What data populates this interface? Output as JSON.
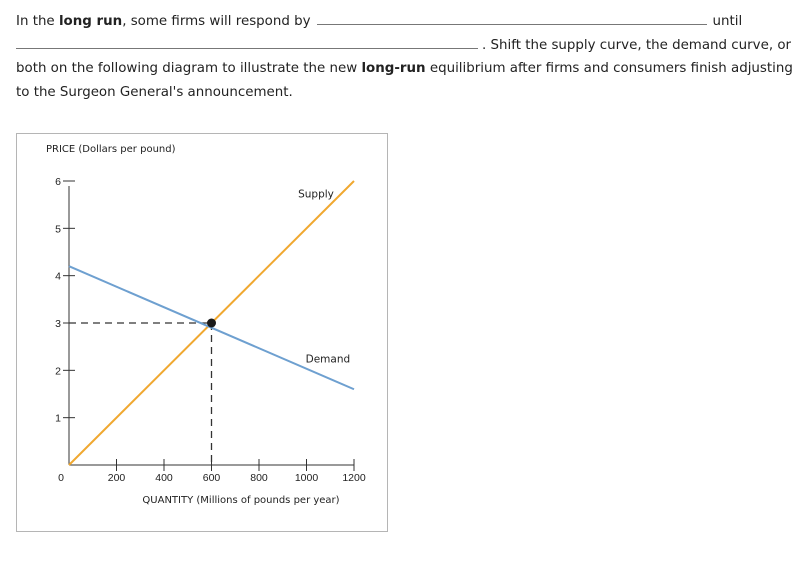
{
  "question": {
    "part1": "In the ",
    "bold1": "long run",
    "part2": ", some firms will respond by",
    "until": "until",
    "part3": ". Shift the supply curve, the demand curve, or both on the following diagram to illustrate the new ",
    "bold2": "long-run",
    "part4": " equilibrium after firms and consumers finish adjusting to the Surgeon General's announcement."
  },
  "chart_data": {
    "type": "line",
    "ylabel": "PRICE (Dollars per pound)",
    "xlabel": "QUANTITY (Millions of pounds per year)",
    "xlim": [
      0,
      1200
    ],
    "ylim": [
      0,
      6
    ],
    "x_ticks": [
      200,
      400,
      600,
      800,
      1000,
      1200
    ],
    "y_ticks": [
      1,
      2,
      3,
      4,
      5,
      6
    ],
    "origin_label": "0",
    "grid": false,
    "series": [
      {
        "name": "Supply",
        "color": "#f0a830",
        "points": [
          [
            0,
            0
          ],
          [
            1200,
            6
          ]
        ]
      },
      {
        "name": "Demand",
        "color": "#6ea0d0",
        "points": [
          [
            0,
            4.2
          ],
          [
            1200,
            1.6
          ]
        ]
      }
    ],
    "equilibrium": {
      "x": 600,
      "y": 3,
      "guides": "dashed"
    }
  }
}
